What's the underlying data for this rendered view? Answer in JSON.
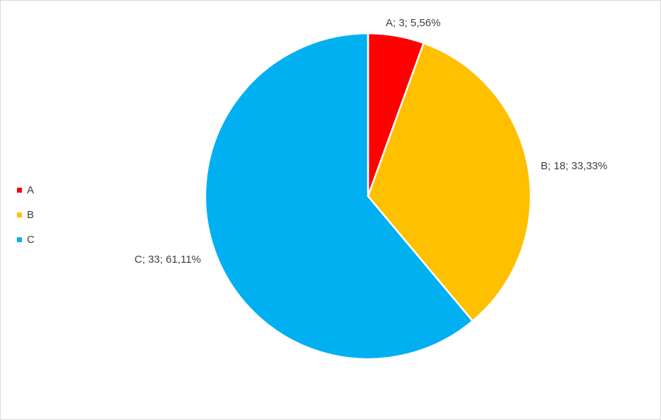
{
  "chart_data": {
    "type": "pie",
    "categories": [
      "A",
      "B",
      "C"
    ],
    "values": [
      3,
      18,
      33
    ],
    "percent_labels": [
      "5,56%",
      "33,33%",
      "61,11%"
    ],
    "data_labels": [
      "A; 3; 5,56%",
      "B; 18; 33,33%",
      "C; 33; 61,11%"
    ],
    "colors": [
      "#ff0000",
      "#ffc000",
      "#00b0f0"
    ],
    "start_angle_deg": 0,
    "direction": "clockwise",
    "legend_position": "left",
    "slice_border_color": "#ffffff"
  }
}
